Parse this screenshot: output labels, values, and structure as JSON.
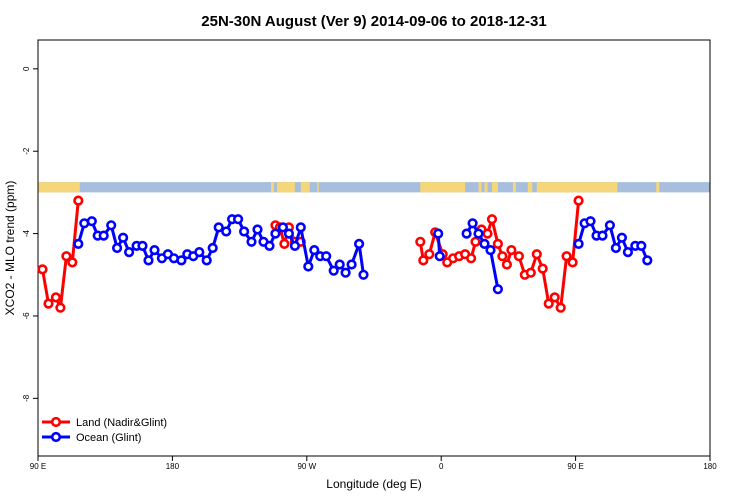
{
  "chart_data": {
    "type": "line",
    "title": "25N-30N August (Ver 9)   2014-09-06 to 2018-12-31",
    "xlabel": "Longitude (deg E)",
    "ylabel": "XCO2 - MLO trend (ppm)",
    "xlim": [
      90,
      540
    ],
    "ylim": [
      -9.4,
      0.7
    ],
    "x_ticks": [
      {
        "value": 90,
        "label": "90 E"
      },
      {
        "value": 180,
        "label": "180"
      },
      {
        "value": 270,
        "label": "90 W"
      },
      {
        "value": 360,
        "label": "0"
      },
      {
        "value": 450,
        "label": "90 E"
      },
      {
        "value": 540,
        "label": "180"
      }
    ],
    "y_ticks": [
      {
        "value": 0,
        "label": "0"
      },
      {
        "value": -2,
        "label": "-2"
      },
      {
        "value": -4,
        "label": "-4"
      },
      {
        "value": -6,
        "label": "-6"
      },
      {
        "value": -8,
        "label": "-8"
      }
    ],
    "grid": false,
    "legend_position": "bottom-left",
    "landmask": {
      "y_range": [
        -3.0,
        -2.75
      ],
      "land_color": "#F5D77A",
      "ocean_color": "#A7BEDF",
      "land_ranges": [
        [
          90,
          118
        ],
        [
          246,
          248
        ],
        [
          250,
          262
        ],
        [
          266,
          272
        ],
        [
          277,
          278
        ],
        [
          346,
          376
        ],
        [
          385,
          387
        ],
        [
          389,
          391
        ],
        [
          394,
          398
        ],
        [
          408,
          410
        ],
        [
          418,
          421
        ],
        [
          424,
          478
        ],
        [
          504,
          506
        ],
        [
          540,
          568
        ]
      ]
    },
    "series": [
      {
        "name": "Land (Nadir&Glint)",
        "color": "#FF0000",
        "segments": [
          [
            [
              93,
              -4.87
            ],
            [
              97,
              -5.7
            ],
            [
              102,
              -5.55
            ],
            [
              105,
              -5.8
            ],
            [
              109,
              -4.55
            ],
            [
              113,
              -4.7
            ],
            [
              117,
              -3.2
            ]
          ],
          [
            [
              249,
              -3.8
            ],
            [
              252,
              -3.85
            ],
            [
              255,
              -4.25
            ],
            [
              258,
              -3.85
            ],
            [
              262,
              -4.2
            ],
            [
              266,
              -4.2
            ]
          ],
          [
            [
              346,
              -4.2
            ],
            [
              348,
              -4.65
            ],
            [
              352,
              -4.5
            ],
            [
              356,
              -3.97
            ],
            [
              361,
              -4.5
            ],
            [
              364,
              -4.7
            ],
            [
              368,
              -4.6
            ],
            [
              372,
              -4.55
            ],
            [
              376,
              -4.5
            ],
            [
              380,
              -4.6
            ],
            [
              383,
              -4.2
            ],
            [
              387,
              -3.9
            ],
            [
              391,
              -4.0
            ],
            [
              394,
              -3.65
            ],
            [
              398,
              -4.25
            ],
            [
              401,
              -4.55
            ],
            [
              404,
              -4.75
            ],
            [
              407,
              -4.4
            ],
            [
              412,
              -4.55
            ],
            [
              416,
              -5.0
            ],
            [
              420,
              -4.95
            ],
            [
              424,
              -4.5
            ],
            [
              428,
              -4.85
            ],
            [
              432,
              -5.7
            ],
            [
              436,
              -5.55
            ],
            [
              440,
              -5.8
            ],
            [
              444,
              -4.55
            ],
            [
              448,
              -4.7
            ],
            [
              452,
              -3.2
            ]
          ]
        ]
      },
      {
        "name": "Ocean (Glint)",
        "color": "#0000FF",
        "segments": [
          [
            [
              117,
              -4.25
            ],
            [
              121,
              -3.75
            ],
            [
              126,
              -3.7
            ],
            [
              130,
              -4.05
            ],
            [
              134,
              -4.05
            ],
            [
              139,
              -3.8
            ],
            [
              143,
              -4.35
            ],
            [
              147,
              -4.1
            ],
            [
              151,
              -4.45
            ],
            [
              156,
              -4.3
            ],
            [
              160,
              -4.3
            ],
            [
              164,
              -4.65
            ],
            [
              168,
              -4.4
            ],
            [
              173,
              -4.6
            ],
            [
              177,
              -4.5
            ],
            [
              181,
              -4.6
            ],
            [
              186,
              -4.65
            ],
            [
              190,
              -4.5
            ],
            [
              194,
              -4.55
            ],
            [
              198,
              -4.45
            ],
            [
              203,
              -4.65
            ],
            [
              207,
              -4.35
            ],
            [
              211,
              -3.85
            ],
            [
              216,
              -3.95
            ],
            [
              220,
              -3.65
            ],
            [
              224,
              -3.65
            ],
            [
              228,
              -3.95
            ],
            [
              233,
              -4.2
            ],
            [
              237,
              -3.9
            ],
            [
              241,
              -4.2
            ],
            [
              245,
              -4.3
            ],
            [
              249,
              -4.0
            ],
            [
              254,
              -3.85
            ],
            [
              258,
              -4.0
            ],
            [
              262,
              -4.3
            ],
            [
              266,
              -3.85
            ],
            [
              271,
              -4.8
            ],
            [
              275,
              -4.4
            ],
            [
              279,
              -4.55
            ],
            [
              283,
              -4.55
            ],
            [
              288,
              -4.9
            ],
            [
              292,
              -4.75
            ],
            [
              296,
              -4.95
            ],
            [
              300,
              -4.75
            ],
            [
              305,
              -4.25
            ],
            [
              308,
              -5.0
            ]
          ],
          [
            [
              358,
              -4.0
            ],
            [
              359,
              -4.55
            ]
          ],
          [
            [
              377,
              -4.0
            ],
            [
              381,
              -3.75
            ],
            [
              385,
              -4.0
            ],
            [
              389,
              -4.25
            ],
            [
              393,
              -4.4
            ],
            [
              398,
              -5.35
            ]
          ],
          [
            [
              452,
              -4.25
            ],
            [
              456,
              -3.75
            ],
            [
              460,
              -3.7
            ],
            [
              464,
              -4.05
            ],
            [
              468,
              -4.05
            ],
            [
              473,
              -3.8
            ],
            [
              477,
              -4.35
            ],
            [
              481,
              -4.1
            ],
            [
              485,
              -4.45
            ],
            [
              490,
              -4.3
            ],
            [
              494,
              -4.3
            ],
            [
              498,
              -4.65
            ]
          ]
        ]
      }
    ]
  }
}
